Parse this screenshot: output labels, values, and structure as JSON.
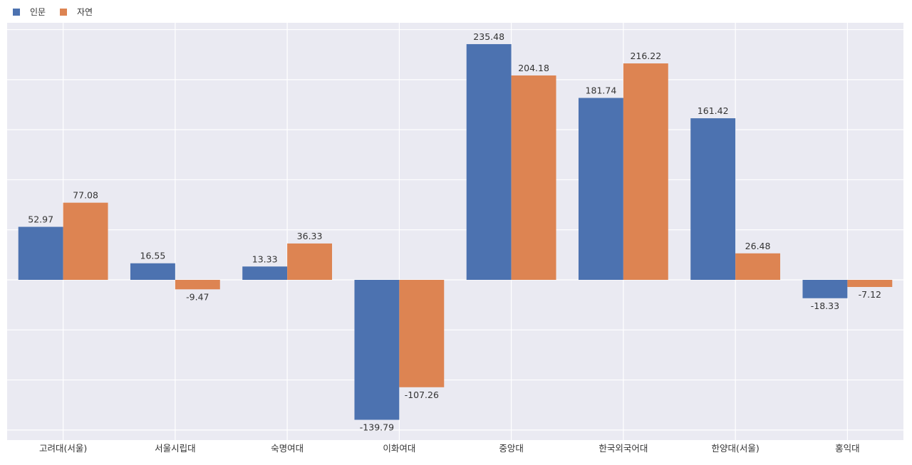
{
  "chart_data": {
    "type": "bar",
    "categories": [
      "고려대(서울)",
      "서울시립대",
      "숙명여대",
      "이화여대",
      "중앙대",
      "한국외국어대",
      "한양대(서울)",
      "홍익대"
    ],
    "series": [
      {
        "name": "인문",
        "color": "#4c72b0",
        "values": [
          52.97,
          16.55,
          13.33,
          -139.79,
          235.48,
          181.74,
          161.42,
          -18.33
        ],
        "labels": [
          "52.97",
          "16.55",
          "13.33",
          "-139.79",
          "235.48",
          "181.74",
          "161.42",
          "-18.33"
        ]
      },
      {
        "name": "자연",
        "color": "#dd8452",
        "values": [
          77.08,
          -9.47,
          36.33,
          -107.26,
          204.18,
          216.22,
          26.48,
          -7.12
        ],
        "labels": [
          "77.08",
          "-9.47",
          "36.33",
          "-107.26",
          "204.18",
          "216.22",
          "26.48",
          "-7.12"
        ]
      }
    ],
    "ylim": [
      -160,
      250
    ],
    "grid": true,
    "legend": "top-left",
    "background": "#eaeaf2"
  }
}
